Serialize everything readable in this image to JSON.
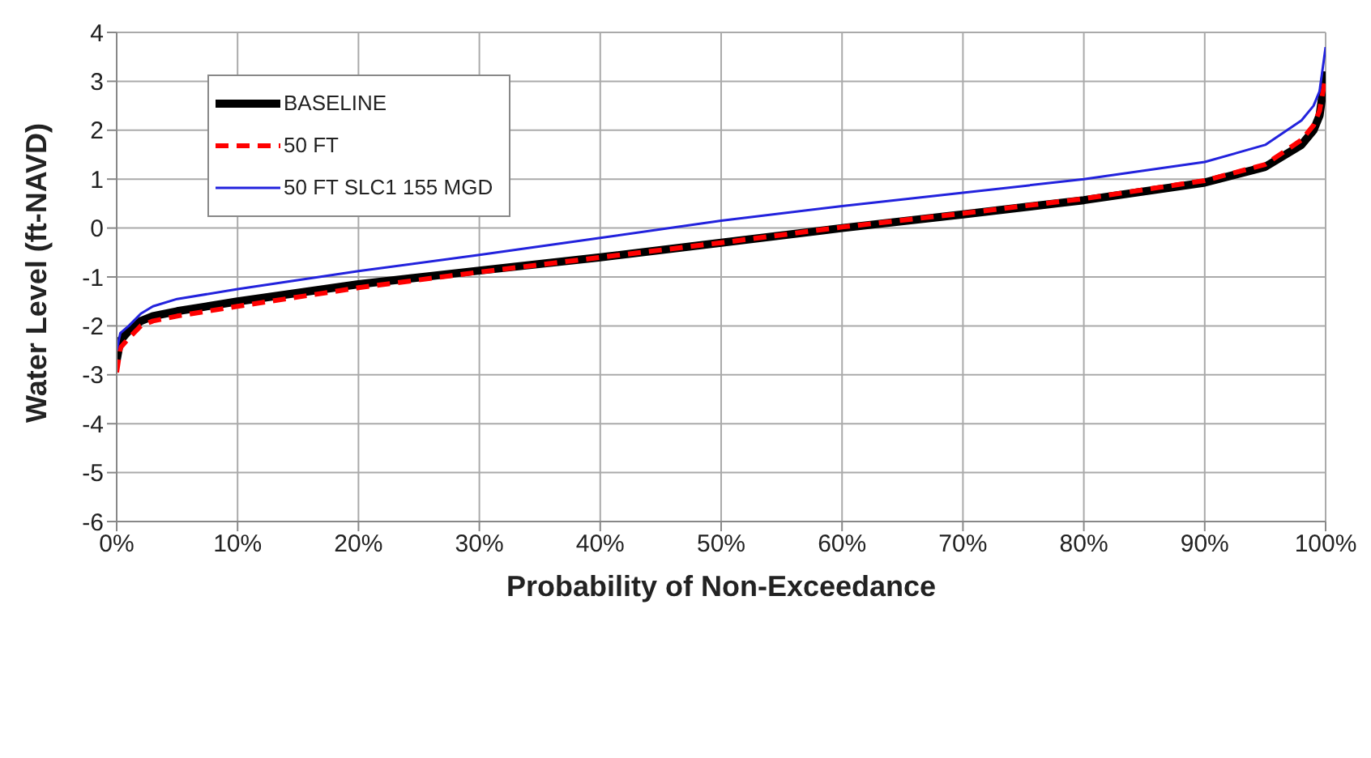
{
  "chart_data": {
    "type": "line",
    "xlabel": "Probability of Non-Exceedance",
    "ylabel": "Water Level (ft-NAVD)",
    "x": [
      0,
      0.3,
      1,
      2,
      3,
      5,
      10,
      20,
      30,
      40,
      50,
      60,
      70,
      80,
      90,
      95,
      98,
      99,
      99.5,
      100
    ],
    "series": [
      {
        "name": "BASELINE",
        "color": "#000000",
        "line_style": "solid",
        "values": [
          -2.7,
          -2.3,
          -2.1,
          -1.9,
          -1.8,
          -1.7,
          -1.5,
          -1.15,
          -0.87,
          -0.6,
          -0.3,
          0,
          0.28,
          0.57,
          0.93,
          1.25,
          1.7,
          2.0,
          2.3,
          3.2
        ]
      },
      {
        "name": "50 FT",
        "color": "#ff0000",
        "line_style": "dashed",
        "values": [
          -2.95,
          -2.45,
          -2.25,
          -2.0,
          -1.9,
          -1.8,
          -1.6,
          -1.22,
          -0.9,
          -0.6,
          -0.3,
          0.02,
          0.3,
          0.6,
          0.97,
          1.3,
          1.8,
          2.1,
          2.4,
          3.1
        ]
      },
      {
        "name": "50 FT SLC1 155 MGD",
        "color": "#2222dd",
        "line_style": "solid",
        "values": [
          -2.5,
          -2.15,
          -2.0,
          -1.75,
          -1.6,
          -1.45,
          -1.25,
          -0.88,
          -0.55,
          -0.2,
          0.15,
          0.45,
          0.72,
          1.0,
          1.35,
          1.7,
          2.2,
          2.5,
          2.8,
          3.7
        ]
      }
    ],
    "xlim": [
      0,
      100
    ],
    "xticks": [
      {
        "value": 0,
        "label": "0%"
      },
      {
        "value": 10,
        "label": "10%"
      },
      {
        "value": 20,
        "label": "20%"
      },
      {
        "value": 30,
        "label": "30%"
      },
      {
        "value": 40,
        "label": "40%"
      },
      {
        "value": 50,
        "label": "50%"
      },
      {
        "value": 60,
        "label": "60%"
      },
      {
        "value": 70,
        "label": "70%"
      },
      {
        "value": 80,
        "label": "80%"
      },
      {
        "value": 90,
        "label": "90%"
      },
      {
        "value": 100,
        "label": "100%"
      }
    ],
    "ylim": [
      -6,
      4
    ],
    "yticks": [
      -6,
      -5,
      -4,
      -3,
      -2,
      -1,
      0,
      1,
      2,
      3,
      4
    ],
    "grid": true,
    "legend": "top left",
    "marker": "none"
  }
}
